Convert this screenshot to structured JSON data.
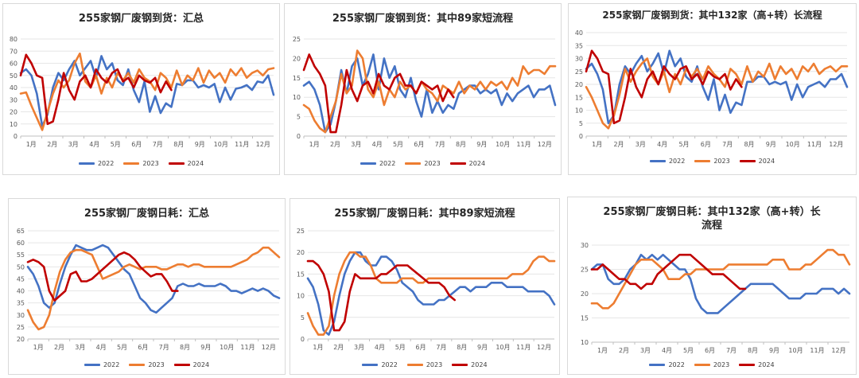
{
  "colors": {
    "2022": "#4472C4",
    "2023": "#ED7D31",
    "2024": "#C00000",
    "grid": "#e6e6e6",
    "axis": "#bfbfbf"
  },
  "chart_data": [
    {
      "id": "c1",
      "type": "line",
      "title": "255家钢厂废钢到货：汇总",
      "ylim": [
        0,
        80
      ],
      "yticks": [
        0,
        10,
        20,
        30,
        40,
        50,
        60,
        70,
        80
      ],
      "xticks": [
        "1月",
        "2月",
        "3月",
        "4月",
        "5月",
        "6月",
        "7月",
        "8月",
        "9月",
        "10月",
        "11月",
        "12月"
      ],
      "series": [
        {
          "name": "2022",
          "values": [
            52,
            55,
            50,
            35,
            8,
            18,
            40,
            52,
            46,
            55,
            62,
            50,
            56,
            62,
            48,
            66,
            55,
            60,
            46,
            42,
            55,
            38,
            28,
            45,
            20,
            33,
            19,
            27,
            24,
            43,
            42,
            46,
            46,
            40,
            42,
            40,
            43,
            28,
            40,
            30,
            39,
            40,
            42,
            38,
            45,
            44,
            50,
            34
          ]
        },
        {
          "name": "2023",
          "values": [
            35,
            36,
            25,
            15,
            5,
            20,
            35,
            46,
            40,
            46,
            60,
            68,
            45,
            40,
            50,
            35,
            48,
            40,
            52,
            46,
            52,
            44,
            55,
            48,
            45,
            38,
            52,
            48,
            40,
            54,
            42,
            50,
            46,
            56,
            44,
            54,
            48,
            52,
            44,
            55,
            50,
            56,
            48,
            52,
            54,
            50,
            55,
            56
          ]
        },
        {
          "name": "2024",
          "values": [
            50,
            67,
            60,
            50,
            48,
            10,
            12,
            30,
            52,
            38,
            30,
            45,
            50,
            40,
            55,
            48,
            44,
            52,
            55,
            45,
            48,
            40,
            50,
            46,
            44,
            48,
            36,
            45,
            38
          ]
        }
      ],
      "legend": [
        "2022",
        "2023",
        "2024"
      ]
    },
    {
      "id": "c2",
      "type": "line",
      "title": "255家钢厂废钢到货：其中89家短流程",
      "ylim": [
        0,
        25
      ],
      "yticks": [
        0,
        5,
        10,
        15,
        20,
        25
      ],
      "xticks": [
        "1月",
        "2月",
        "3月",
        "4月",
        "5月",
        "6月",
        "7月",
        "8月",
        "9月",
        "10月",
        "11月",
        "12月"
      ],
      "series": [
        {
          "name": "2022",
          "values": [
            13,
            14,
            12,
            8,
            1,
            3,
            9,
            17,
            11,
            18,
            20,
            13,
            16,
            21,
            12,
            20,
            15,
            18,
            12,
            10,
            15,
            9,
            5,
            12,
            6,
            9,
            6,
            8,
            7,
            11,
            12,
            13,
            13,
            11,
            12,
            11,
            12,
            8,
            11,
            9,
            11,
            12,
            13,
            10,
            12,
            12,
            13,
            8
          ]
        },
        {
          "name": "2023",
          "values": [
            8,
            7,
            4,
            2,
            1,
            5,
            9,
            16,
            11,
            13,
            22,
            20,
            12,
            10,
            14,
            8,
            12,
            10,
            14,
            12,
            13,
            11,
            14,
            12,
            11,
            9,
            13,
            12,
            11,
            14,
            11,
            13,
            12,
            14,
            12,
            14,
            13,
            14,
            12,
            15,
            13,
            18,
            16,
            17,
            17,
            16,
            18,
            18
          ]
        },
        {
          "name": "2024",
          "values": [
            17,
            21,
            18,
            16,
            13,
            1,
            1,
            8,
            17,
            12,
            9,
            13,
            14,
            11,
            16,
            13,
            12,
            15,
            16,
            13,
            13,
            11,
            14,
            13,
            12,
            13,
            9,
            12,
            10
          ]
        }
      ],
      "legend": [
        "2022",
        "2023",
        "2024"
      ]
    },
    {
      "id": "c3",
      "type": "line",
      "title": "255家钢厂废钢到货：其中132家（高+转）长流程",
      "ylim": [
        0,
        40
      ],
      "yticks": [
        0,
        5,
        10,
        15,
        20,
        25,
        30,
        35,
        40
      ],
      "xticks": [
        "1月",
        "2月",
        "3月",
        "4月",
        "5月",
        "6月",
        "7月",
        "8月",
        "9月",
        "10月",
        "11月",
        "12月"
      ],
      "series": [
        {
          "name": "2022",
          "values": [
            26,
            28,
            24,
            18,
            5,
            8,
            20,
            27,
            24,
            28,
            31,
            25,
            28,
            32,
            24,
            33,
            27,
            30,
            23,
            21,
            27,
            19,
            14,
            22,
            10,
            16,
            9,
            13,
            12,
            21,
            21,
            23,
            23,
            20,
            21,
            20,
            21,
            14,
            20,
            15,
            19,
            20,
            21,
            19,
            22,
            22,
            24,
            19
          ]
        },
        {
          "name": "2023",
          "values": [
            19,
            15,
            10,
            5,
            3,
            8,
            16,
            26,
            21,
            25,
            28,
            30,
            23,
            20,
            25,
            17,
            24,
            20,
            26,
            23,
            26,
            22,
            27,
            24,
            22,
            19,
            26,
            24,
            20,
            27,
            21,
            25,
            23,
            28,
            22,
            27,
            24,
            26,
            22,
            27,
            25,
            28,
            24,
            26,
            27,
            25,
            27,
            27
          ]
        },
        {
          "name": "2024",
          "values": [
            25,
            33,
            30,
            25,
            24,
            5,
            6,
            15,
            26,
            19,
            15,
            22,
            25,
            20,
            27,
            24,
            22,
            26,
            27,
            22,
            24,
            20,
            25,
            23,
            22,
            24,
            18,
            22,
            19
          ]
        }
      ],
      "legend": [
        "2022",
        "2023",
        "2024"
      ]
    },
    {
      "id": "c4",
      "type": "line",
      "title": "255家钢厂废钢日耗：汇总",
      "ylim": [
        20,
        65
      ],
      "yticks": [
        20,
        25,
        30,
        35,
        40,
        45,
        50,
        55,
        60,
        65
      ],
      "xticks": [
        "1月",
        "2月",
        "3月",
        "4月",
        "5月",
        "6月",
        "7月",
        "8月",
        "9月",
        "10月",
        "11月",
        "12月"
      ],
      "series": [
        {
          "name": "2022",
          "values": [
            50,
            47,
            42,
            35,
            33,
            35,
            43,
            50,
            55,
            59,
            58,
            57,
            57,
            58,
            59,
            58,
            55,
            52,
            49,
            47,
            42,
            37,
            35,
            32,
            31,
            33,
            35,
            37,
            42,
            43,
            42,
            42,
            43,
            42,
            42,
            42,
            43,
            42,
            40,
            40,
            39,
            40,
            41,
            40,
            41,
            40,
            38,
            37
          ]
        },
        {
          "name": "2023",
          "values": [
            32,
            27,
            24,
            25,
            30,
            40,
            48,
            53,
            56,
            57,
            57,
            56,
            55,
            50,
            45,
            46,
            47,
            48,
            50,
            51,
            50,
            49,
            50,
            50,
            50,
            49,
            49,
            50,
            51,
            51,
            50,
            51,
            51,
            50,
            50,
            50,
            50,
            50,
            50,
            51,
            52,
            53,
            55,
            56,
            58,
            58,
            56,
            54
          ]
        },
        {
          "name": "2024",
          "values": [
            52,
            53,
            52,
            50,
            40,
            36,
            38,
            40,
            47,
            48,
            44,
            44,
            45,
            47,
            49,
            51,
            53,
            55,
            56,
            55,
            53,
            50,
            48,
            46,
            47,
            47,
            44,
            40,
            40
          ]
        }
      ],
      "legend": [
        "2022",
        "2023",
        "2024"
      ]
    },
    {
      "id": "c5",
      "type": "line",
      "title": "255家钢厂废钢日耗：其中89家短流程",
      "ylim": [
        0,
        25
      ],
      "yticks": [
        0,
        5,
        10,
        15,
        20,
        25
      ],
      "xticks": [
        "1月",
        "2月",
        "3月",
        "4月",
        "5月",
        "6月",
        "7月",
        "8月",
        "9月",
        "10月",
        "11月",
        "12月"
      ],
      "series": [
        {
          "name": "2022",
          "values": [
            14,
            12,
            8,
            2,
            1,
            4,
            10,
            15,
            18,
            20,
            20,
            18,
            17,
            17,
            19,
            19,
            18,
            16,
            13,
            12,
            11,
            9,
            8,
            8,
            8,
            9,
            9,
            10,
            11,
            12,
            12,
            11,
            12,
            12,
            12,
            13,
            13,
            13,
            12,
            12,
            12,
            12,
            11,
            11,
            11,
            11,
            10,
            8
          ]
        },
        {
          "name": "2023",
          "values": [
            6,
            3,
            1,
            1,
            3,
            10,
            15,
            18,
            20,
            20,
            19,
            19,
            17,
            14,
            13,
            13,
            13,
            13,
            14,
            14,
            14,
            13,
            13,
            14,
            14,
            14,
            14,
            14,
            14,
            14,
            14,
            14,
            14,
            14,
            14,
            14,
            14,
            14,
            14,
            15,
            15,
            15,
            16,
            18,
            19,
            19,
            18,
            18
          ]
        },
        {
          "name": "2024",
          "values": [
            18,
            18,
            17,
            15,
            11,
            2,
            2,
            4,
            11,
            15,
            14,
            14,
            14,
            14,
            15,
            15,
            16,
            17,
            17,
            17,
            16,
            15,
            14,
            13,
            13,
            13,
            12,
            10,
            9
          ]
        }
      ],
      "legend": [
        "2022",
        "2023",
        "2024"
      ]
    },
    {
      "id": "c6",
      "type": "line",
      "title": "255家钢厂废钢日耗：其中132家（高+转）长流程",
      "ylim": [
        10,
        30
      ],
      "yticks": [
        10,
        15,
        20,
        25,
        30
      ],
      "xticks": [
        "1月",
        "2月",
        "3月",
        "4月",
        "5月",
        "6月",
        "7月",
        "8月",
        "9月",
        "10月",
        "11月",
        "12月"
      ],
      "series": [
        {
          "name": "2022",
          "values": [
            25,
            26,
            26,
            23,
            22,
            22,
            23,
            25,
            26,
            28,
            27,
            28,
            27,
            28,
            27,
            26,
            25,
            25,
            23,
            19,
            17,
            16,
            16,
            16,
            17,
            18,
            19,
            20,
            21,
            22,
            22,
            22,
            22,
            22,
            21,
            20,
            19,
            19,
            19,
            20,
            20,
            20,
            21,
            21,
            21,
            20,
            21,
            20
          ]
        },
        {
          "name": "2023",
          "values": [
            18,
            18,
            17,
            17,
            18,
            20,
            22,
            24,
            26,
            27,
            27,
            27,
            26,
            25,
            23,
            23,
            23,
            24,
            24,
            25,
            25,
            25,
            25,
            25,
            25,
            26,
            26,
            26,
            26,
            26,
            26,
            26,
            26,
            27,
            27,
            27,
            25,
            25,
            25,
            26,
            26,
            27,
            28,
            29,
            29,
            28,
            28,
            26
          ]
        },
        {
          "name": "2024",
          "values": [
            25,
            25,
            26,
            25,
            24,
            23,
            23,
            22,
            22,
            21,
            22,
            22,
            24,
            25,
            26,
            27,
            28,
            28,
            28,
            27,
            26,
            25,
            24,
            24,
            24,
            23,
            22,
            21,
            21
          ]
        }
      ],
      "legend": [
        "2022",
        "2023",
        "2024"
      ]
    }
  ]
}
